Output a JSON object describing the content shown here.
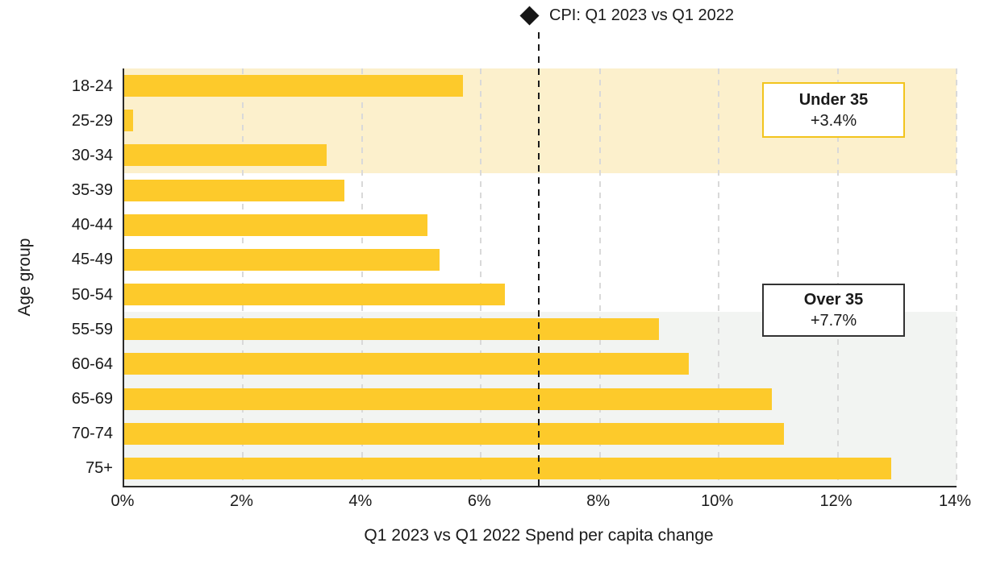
{
  "legend": {
    "marker": "diamond",
    "label": "CPI: Q1 2023 vs Q1 2022"
  },
  "chart_data": {
    "type": "bar",
    "orientation": "horizontal",
    "title": "",
    "xlabel": "Q1 2023 vs Q1 2022 Spend per capita change",
    "ylabel": "Age group",
    "categories": [
      "18-24",
      "25-29",
      "30-34",
      "35-39",
      "40-44",
      "45-49",
      "50-54",
      "55-59",
      "60-64",
      "65-69",
      "70-74",
      "75+"
    ],
    "values": [
      5.7,
      0.15,
      3.4,
      3.7,
      5.1,
      5.3,
      6.4,
      9.0,
      9.5,
      10.9,
      11.1,
      12.9
    ],
    "value_unit": "%",
    "xlim": [
      0,
      14
    ],
    "xticks": [
      "0%",
      "2%",
      "4%",
      "6%",
      "8%",
      "10%",
      "12%",
      "14%"
    ],
    "xtick_values": [
      0,
      2,
      4,
      6,
      8,
      10,
      12,
      14
    ],
    "grid": "vertical-dashed",
    "legend_position": "top-center",
    "reference_line": {
      "label": "CPI: Q1 2023 vs Q1 2022",
      "value": 7.0,
      "style": "dashed-black"
    },
    "bands": [
      {
        "name": "under-35",
        "rows": [
          0,
          2
        ],
        "color": "#fcf0cc"
      },
      {
        "name": "over-35",
        "rows": [
          7,
          11
        ],
        "color": "#f2f4f2"
      }
    ]
  },
  "annotations": {
    "under35": {
      "title": "Under 35",
      "value": "+3.4%",
      "border_color": "#f2c41d"
    },
    "over35": {
      "title": "Over 35",
      "value": "+7.7%",
      "border_color": "#333333"
    }
  },
  "colors": {
    "bar": "#fdca2b",
    "reference_line": "#1a1a1a",
    "band_under_35": "#fcf0cc",
    "band_over_35": "#f2f4f2",
    "text": "#1a1a1a"
  }
}
